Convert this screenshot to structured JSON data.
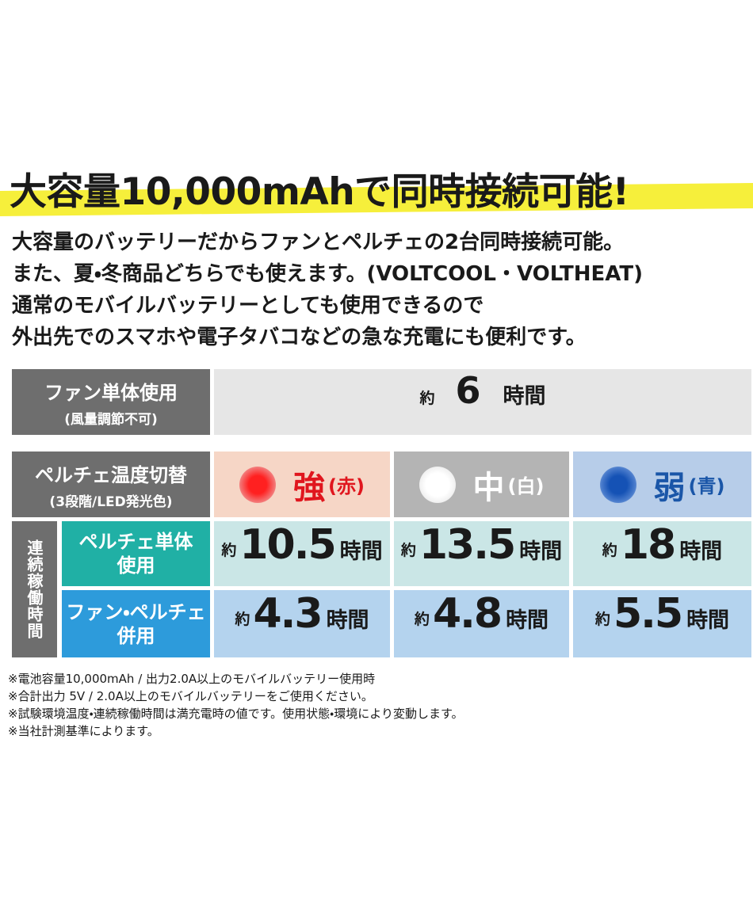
{
  "headline": "大容量10,000mAhで同時接続可能!",
  "description": [
    "大容量のバッテリーだからファンとペルチェの2台同時接続可能。",
    "また、夏・冬商品どちらでも使えます。(VOLTCOOL・VOLTHEAT)",
    "通常のモバイルバッテリーとしても使用できるので",
    "外出先でのスマホや電子タバコなどの急な充電にも便利です。"
  ],
  "table": {
    "fan_only": {
      "label": "ファン単体使用",
      "note": "(風量調節不可)",
      "prefix": "約",
      "value": "6",
      "unit": "時間"
    },
    "peltier_setting": {
      "label": "ペルチェ温度切替",
      "note": "(3段階/LED発光色)",
      "levels": [
        {
          "name": "強",
          "color_name": "(赤)"
        },
        {
          "name": "中",
          "color_name": "(白)"
        },
        {
          "name": "弱",
          "color_name": "(青)"
        }
      ]
    },
    "runtime_label": "連続稼働時間",
    "rows": [
      {
        "label": [
          "ペルチェ単体",
          "使用"
        ],
        "cells": [
          {
            "prefix": "約",
            "value": "10.5",
            "unit": "時間"
          },
          {
            "prefix": "約",
            "value": "13.5",
            "unit": "時間"
          },
          {
            "prefix": "約",
            "value": "18",
            "unit": "時間"
          }
        ]
      },
      {
        "label": [
          "ファン・ペルチェ",
          "併用"
        ],
        "cells": [
          {
            "prefix": "約",
            "value": "4.3",
            "unit": "時間"
          },
          {
            "prefix": "約",
            "value": "4.8",
            "unit": "時間"
          },
          {
            "prefix": "約",
            "value": "5.5",
            "unit": "時間"
          }
        ]
      }
    ]
  },
  "notes": [
    "※電池容量10,000mAh / 出力2.0A以上のモバイルバッテリー使用時",
    "※合計出力 5V / 2.0A以上のモバイルバッテリーをご使用ください。",
    "※試験環境温度・連続稼働時間は満充電時の値です。使用状態・環境により変動します。",
    "※当社計測基準によります。"
  ]
}
